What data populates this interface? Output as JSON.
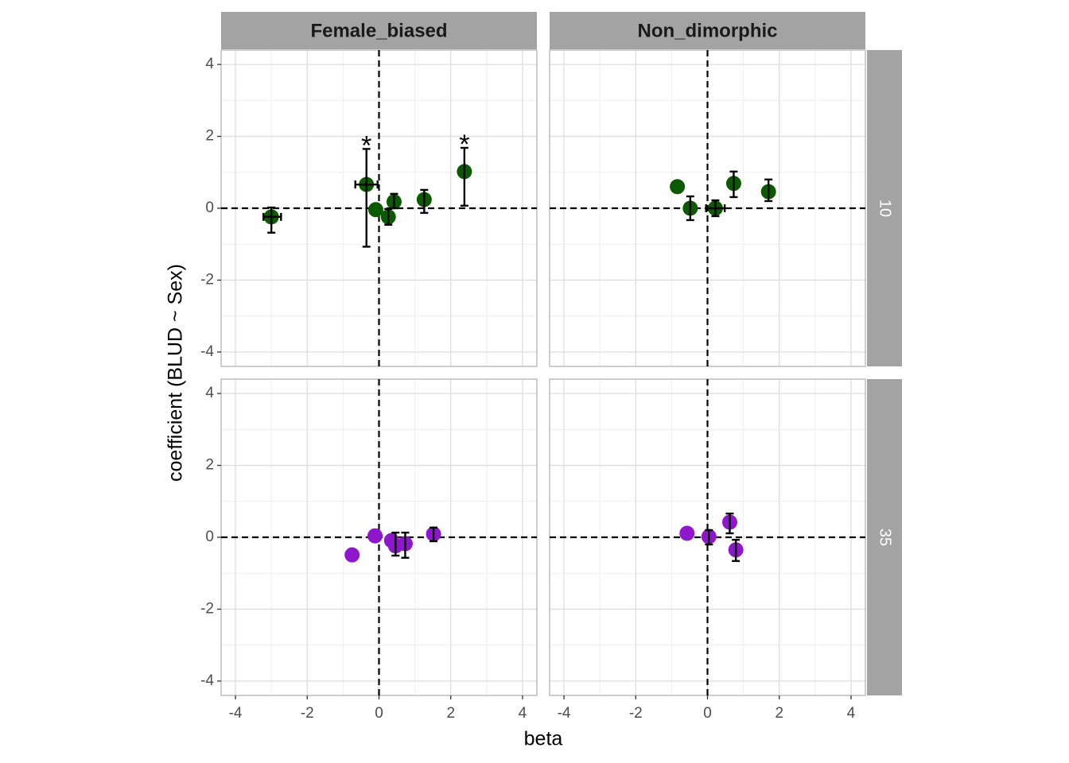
{
  "chart_data": {
    "type": "scatter",
    "xlabel": "beta",
    "ylabel": "coefficient (BLUD ~ Sex)",
    "col_facets": [
      "Female_biased",
      "Non_dimorphic"
    ],
    "row_facets": [
      "10",
      "35"
    ],
    "xlim": [
      -4.4,
      4.4
    ],
    "ylim": [
      -4.4,
      4.4
    ],
    "xticks": [
      -4,
      -2,
      0,
      2,
      4
    ],
    "yticks": [
      -4,
      -2,
      0,
      2,
      4
    ],
    "xminor": [
      -3,
      -1,
      1,
      3
    ],
    "yminor": [
      -3,
      -1,
      1,
      3
    ],
    "grid": true,
    "hline": 0,
    "vline": 0,
    "panels": [
      {
        "color": "#0b5a00",
        "x": [
          -3.0,
          -0.35,
          -0.09,
          0.26,
          0.42,
          1.26,
          2.38
        ],
        "values": [
          -0.24,
          0.66,
          -0.04,
          -0.24,
          0.18,
          0.24,
          1.02
        ],
        "ylow": [
          -0.68,
          -1.07,
          null,
          -0.46,
          0.0,
          -0.13,
          0.07
        ],
        "yhigh": [
          0.02,
          1.65,
          null,
          -0.02,
          0.4,
          0.51,
          1.68
        ],
        "xlow": [
          -3.22,
          -0.66,
          null,
          null,
          null,
          null,
          null
        ],
        "xhigh": [
          -2.73,
          -0.04,
          null,
          null,
          null,
          null,
          null
        ],
        "point_labels": [
          null,
          "*",
          null,
          null,
          null,
          null,
          "*"
        ]
      },
      {
        "color": "#0b5a00",
        "x": [
          -0.84,
          -0.48,
          0.22,
          0.73,
          1.7
        ],
        "values": [
          0.6,
          0.0,
          0.0,
          0.69,
          0.46
        ],
        "ylow": [
          null,
          -0.33,
          -0.22,
          0.31,
          0.2
        ],
        "yhigh": [
          null,
          0.33,
          0.22,
          1.02,
          0.8
        ],
        "xlow": [
          null,
          null,
          -0.04,
          null,
          null
        ],
        "xhigh": [
          null,
          null,
          0.48,
          null,
          null
        ]
      },
      {
        "color": "#8f16cc",
        "x": [
          -0.75,
          -0.11,
          0.35,
          0.46,
          0.73,
          1.52
        ],
        "values": [
          -0.49,
          0.04,
          -0.09,
          -0.24,
          -0.18,
          0.09
        ],
        "ylow": [
          null,
          null,
          null,
          -0.51,
          -0.57,
          -0.11
        ],
        "yhigh": [
          null,
          null,
          null,
          0.13,
          0.13,
          0.27
        ]
      },
      {
        "color": "#8f16cc",
        "x": [
          -0.57,
          0.04,
          0.62,
          0.79
        ],
        "values": [
          0.11,
          0.02,
          0.42,
          -0.35
        ],
        "ylow": [
          null,
          -0.2,
          0.11,
          -0.66
        ],
        "yhigh": [
          null,
          0.2,
          0.66,
          -0.07
        ]
      }
    ]
  }
}
